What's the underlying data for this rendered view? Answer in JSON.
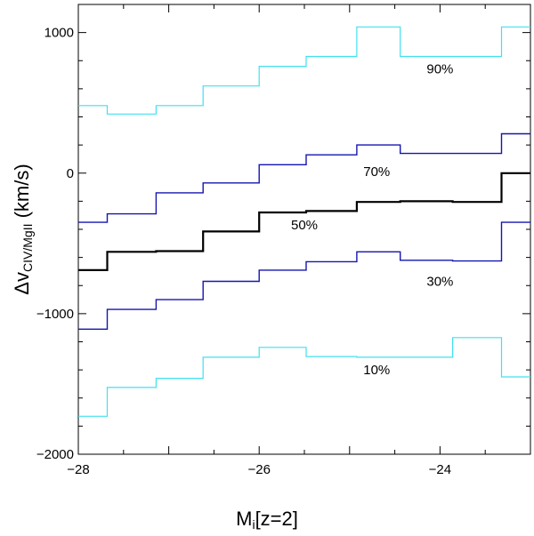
{
  "chart_data": {
    "type": "line",
    "xlabel_main": "M",
    "xlabel_sub": "i",
    "xlabel_rest": "[z=2]",
    "ylabel_main": "Δv",
    "ylabel_sub": "CIV/MgII",
    "ylabel_rest": " (km/s)",
    "xlim": [
      -28,
      -23
    ],
    "ylim": [
      -2000,
      1200
    ],
    "x_ticks": [
      -28,
      -26,
      -24
    ],
    "x_tick_labels": [
      "−28",
      "−26",
      "−24"
    ],
    "y_ticks": [
      -2000,
      -1000,
      0,
      1000
    ],
    "y_tick_labels": [
      "−2000",
      "−1000",
      "0",
      "1000"
    ],
    "bin_edges": [
      -28.0,
      -27.68,
      -27.14,
      -26.62,
      -26.0,
      -25.48,
      -24.92,
      -24.44,
      -23.86,
      -23.32,
      -23.0
    ],
    "series": [
      {
        "label": "10%",
        "color": "#40e0f0",
        "width": 1.2,
        "values": [
          -1730,
          -1525,
          -1460,
          -1310,
          -1240,
          -1305,
          -1310,
          -1310,
          -1170,
          -1450
        ]
      },
      {
        "label": "30%",
        "color": "#1515b0",
        "width": 1.4,
        "values": [
          -1110,
          -970,
          -900,
          -770,
          -690,
          -630,
          -560,
          -620,
          -625,
          -350
        ]
      },
      {
        "label": "50%",
        "color": "#000000",
        "width": 2.2,
        "values": [
          -690,
          -560,
          -555,
          -415,
          -280,
          -270,
          -205,
          -200,
          -205,
          0
        ]
      },
      {
        "label": "70%",
        "color": "#1515b0",
        "width": 1.4,
        "values": [
          -350,
          -290,
          -140,
          -70,
          60,
          130,
          200,
          140,
          140,
          280
        ]
      },
      {
        "label": "90%",
        "color": "#40e0f0",
        "width": 1.2,
        "values": [
          480,
          420,
          480,
          620,
          760,
          830,
          1040,
          830,
          830,
          1040
        ]
      }
    ],
    "series_label_positions": [
      {
        "label": "10%",
        "x": -24.7,
        "y": -1430
      },
      {
        "label": "30%",
        "x": -24.0,
        "y": -800
      },
      {
        "label": "50%",
        "x": -25.5,
        "y": -400
      },
      {
        "label": "70%",
        "x": -24.7,
        "y": -20
      },
      {
        "label": "90%",
        "x": -24.0,
        "y": 710
      }
    ]
  }
}
